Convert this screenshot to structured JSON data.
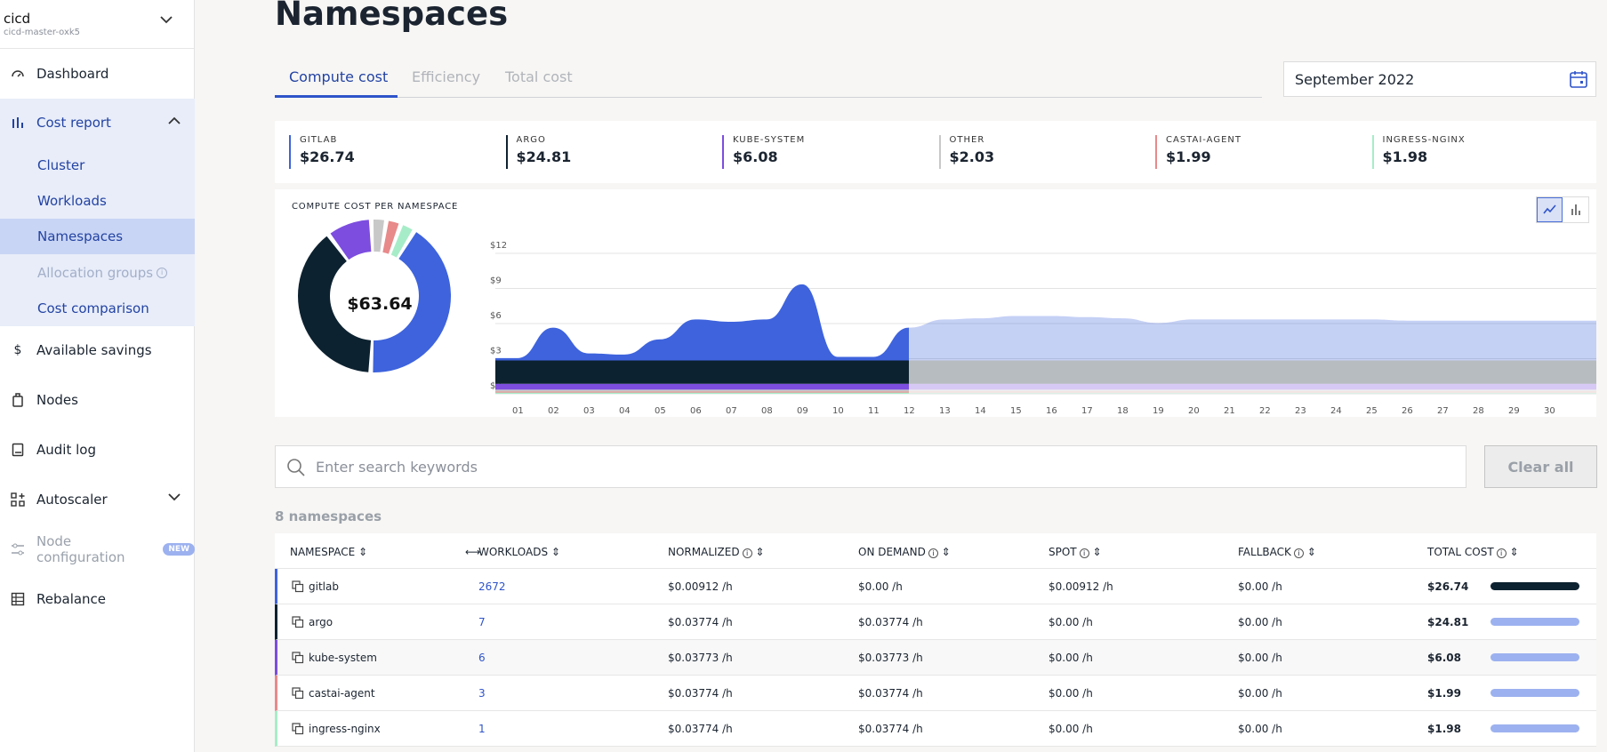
{
  "cluster": {
    "name": "cicd",
    "sub": "cicd-master-oxk5"
  },
  "nav": {
    "dashboard": "Dashboard",
    "cost_report": "Cost report",
    "sub": {
      "cluster": "Cluster",
      "workloads": "Workloads",
      "namespaces": "Namespaces",
      "allocation": "Allocation groups",
      "comparison": "Cost comparison"
    },
    "savings": "Available savings",
    "nodes": "Nodes",
    "audit": "Audit log",
    "autoscaler": "Autoscaler",
    "node_config": "Node configuration",
    "new_badge": "NEW",
    "rebalance": "Rebalance"
  },
  "page": {
    "title": "Namespaces"
  },
  "tabs": {
    "compute": "Compute cost",
    "efficiency": "Efficiency",
    "total": "Total cost"
  },
  "date": "September 2022",
  "summary": [
    {
      "label": "GITLAB",
      "value": "$26.74",
      "color": "#3e63dd"
    },
    {
      "label": "ARGO",
      "value": "$24.81",
      "color": "#0d2230"
    },
    {
      "label": "KUBE-SYSTEM",
      "value": "$6.08",
      "color": "#7c4ddf"
    },
    {
      "label": "OTHER",
      "value": "$2.03",
      "color": "#c8c8c8"
    },
    {
      "label": "CASTAI-AGENT",
      "value": "$1.99",
      "color": "#e8898a"
    },
    {
      "label": "INGRESS-NGINX",
      "value": "$1.98",
      "color": "#a7ecc8"
    }
  ],
  "chart": {
    "title": "COMPUTE COST PER NAMESPACE",
    "total": "$63.64"
  },
  "chart_data": [
    {
      "type": "pie",
      "labels": [
        "gitlab",
        "argo",
        "kube-system",
        "other",
        "castai-agent",
        "ingress-nginx"
      ],
      "values": [
        26.74,
        24.81,
        6.08,
        2.03,
        1.99,
        1.98
      ],
      "colors": [
        "#3e63dd",
        "#0d2230",
        "#7c4ddf",
        "#c8c8c8",
        "#e8898a",
        "#a7ecc8"
      ]
    },
    {
      "type": "area",
      "x": [
        "01",
        "02",
        "03",
        "04",
        "05",
        "06",
        "07",
        "08",
        "09",
        "10",
        "11",
        "12",
        "13",
        "14",
        "15",
        "16",
        "17",
        "18",
        "19",
        "20",
        "21",
        "22",
        "23",
        "24",
        "25",
        "26",
        "27",
        "28",
        "29",
        "30"
      ],
      "y_ticks": [
        "$0",
        "$3",
        "$6",
        "$9",
        "$12"
      ],
      "ylim": [
        0,
        12
      ],
      "actual_days": 12,
      "series": [
        {
          "name": "gitlab",
          "color": "#3e63dd",
          "values": [
            0.2,
            2.8,
            0.6,
            0.5,
            1.8,
            3.5,
            3.3,
            3.5,
            6.5,
            0.3,
            0.3,
            2.8,
            3.5,
            3.6,
            3.8,
            3.8,
            3.7,
            3.6,
            3.2,
            3.5,
            3.5,
            3.5,
            3.5,
            3.5,
            3.5,
            3.4,
            3.4,
            3.4,
            3.4,
            3.4
          ]
        },
        {
          "name": "argo",
          "color": "#0d2230",
          "values": [
            2.0,
            2.0,
            2.0,
            2.0,
            2.0,
            2.0,
            2.0,
            2.0,
            2.0,
            2.0,
            2.0,
            2.0,
            2.0,
            2.0,
            2.0,
            2.0,
            2.0,
            2.0,
            2.0,
            2.0,
            2.0,
            2.0,
            2.0,
            2.0,
            2.0,
            2.0,
            2.0,
            2.0,
            2.0,
            2.0
          ]
        },
        {
          "name": "kube-system",
          "color": "#7c4ddf",
          "values": [
            0.5,
            0.5,
            0.5,
            0.5,
            0.5,
            0.5,
            0.5,
            0.5,
            0.5,
            0.5,
            0.5,
            0.5,
            0.5,
            0.5,
            0.5,
            0.5,
            0.5,
            0.5,
            0.5,
            0.5,
            0.5,
            0.5,
            0.5,
            0.5,
            0.5,
            0.5,
            0.5,
            0.5,
            0.5,
            0.5
          ]
        },
        {
          "name": "other",
          "color": "#c8c8c8",
          "values": [
            0.15,
            0.15,
            0.15,
            0.15,
            0.15,
            0.15,
            0.15,
            0.15,
            0.15,
            0.15,
            0.15,
            0.15,
            0.15,
            0.15,
            0.15,
            0.15,
            0.15,
            0.15,
            0.15,
            0.15,
            0.15,
            0.15,
            0.15,
            0.15,
            0.15,
            0.15,
            0.15,
            0.15,
            0.15,
            0.15
          ]
        },
        {
          "name": "castai-agent",
          "color": "#e8898a",
          "values": [
            0.1,
            0.1,
            0.1,
            0.1,
            0.1,
            0.1,
            0.1,
            0.1,
            0.1,
            0.1,
            0.1,
            0.1,
            0.1,
            0.1,
            0.1,
            0.1,
            0.1,
            0.1,
            0.1,
            0.1,
            0.1,
            0.1,
            0.1,
            0.1,
            0.1,
            0.1,
            0.1,
            0.1,
            0.1,
            0.1
          ]
        },
        {
          "name": "ingress-nginx",
          "color": "#a7ecc8",
          "values": [
            0.1,
            0.1,
            0.1,
            0.1,
            0.1,
            0.1,
            0.1,
            0.1,
            0.1,
            0.1,
            0.1,
            0.1,
            0.1,
            0.1,
            0.1,
            0.1,
            0.1,
            0.1,
            0.1,
            0.1,
            0.1,
            0.1,
            0.1,
            0.1,
            0.1,
            0.1,
            0.1,
            0.1,
            0.1,
            0.1
          ]
        }
      ]
    }
  ],
  "search": {
    "placeholder": "Enter search keywords"
  },
  "clear_label": "Clear all",
  "ns_count": "8 namespaces",
  "table": {
    "headers": {
      "namespace": "NAMESPACE",
      "workloads": "WORKLOADS",
      "normalized": "NORMALIZED",
      "on_demand": "ON DEMAND",
      "spot": "SPOT",
      "fallback": "FALLBACK",
      "total": "TOTAL COST"
    },
    "rows": [
      {
        "namespace": "gitlab",
        "workloads": "2672",
        "normalized": "$0.00912 /h",
        "on_demand": "$0.00 /h",
        "spot": "$0.00912 /h",
        "fallback": "$0.00 /h",
        "total": "$26.74",
        "color": "#3e63dd",
        "share": 1.0
      },
      {
        "namespace": "argo",
        "workloads": "7",
        "normalized": "$0.03774 /h",
        "on_demand": "$0.03774 /h",
        "spot": "$0.00 /h",
        "fallback": "$0.00 /h",
        "total": "$24.81",
        "color": "#0d2230",
        "share": 1.0
      },
      {
        "namespace": "kube-system",
        "workloads": "6",
        "normalized": "$0.03773 /h",
        "on_demand": "$0.03773 /h",
        "spot": "$0.00 /h",
        "fallback": "$0.00 /h",
        "total": "$6.08",
        "color": "#7c4ddf",
        "share": 1.0
      },
      {
        "namespace": "castai-agent",
        "workloads": "3",
        "normalized": "$0.03774 /h",
        "on_demand": "$0.03774 /h",
        "spot": "$0.00 /h",
        "fallback": "$0.00 /h",
        "total": "$1.99",
        "color": "#e8898a",
        "share": 1.0
      },
      {
        "namespace": "ingress-nginx",
        "workloads": "1",
        "normalized": "$0.03774 /h",
        "on_demand": "$0.03774 /h",
        "spot": "$0.00 /h",
        "fallback": "$0.00 /h",
        "total": "$1.98",
        "color": "#a7ecc8",
        "share": 1.0
      }
    ]
  }
}
